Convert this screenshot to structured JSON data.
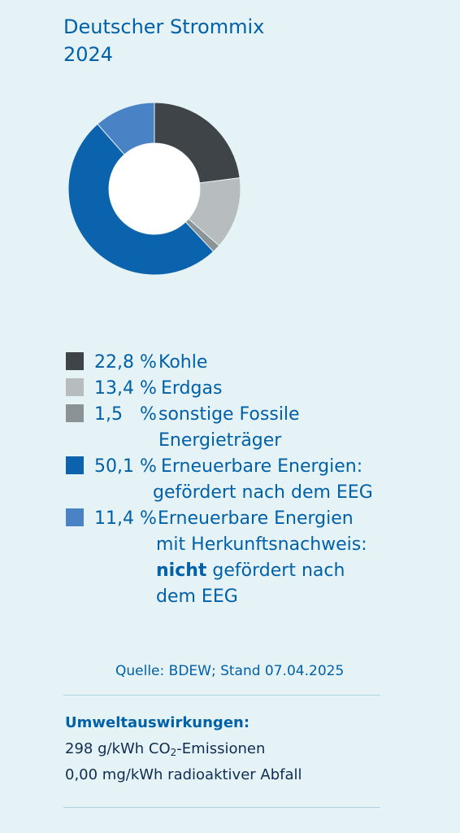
{
  "header": {
    "title_line1": "Deutscher Strommix",
    "title_line2": "2024"
  },
  "chart_data": {
    "type": "pie",
    "donut": true,
    "categories": [
      "Kohle",
      "Erdgas",
      "sonstige Fossile Energieträger",
      "Erneuerbare Energien: gefördert nach dem EEG",
      "Erneuerbare Energien mit Herkunftsnachweis: nicht gefördert nach dem EEG"
    ],
    "values": [
      22.8,
      13.4,
      1.5,
      50.1,
      11.4
    ],
    "unit": "%",
    "colors": [
      "#3f4448",
      "#b7bcbf",
      "#8c9396",
      "#0a63ac",
      "#4a82c6"
    ],
    "start_angle_deg": 0,
    "direction": "clockwise"
  },
  "legend": {
    "items": [
      {
        "pct": "22,8 %",
        "lines": [
          "Kohle"
        ],
        "color": "#3f4448"
      },
      {
        "pct": "13,4 %",
        "lines": [
          "Erdgas"
        ],
        "color": "#b7bcbf"
      },
      {
        "pct": "1,5   %",
        "lines": [
          "sonstige Fossile",
          "Energieträger"
        ],
        "color": "#8c9396"
      },
      {
        "pct": "50,1 %",
        "lines": [
          "Erneuerbare Energien:",
          "gefördert nach dem EEG"
        ],
        "color": "#0a63ac"
      },
      {
        "pct": "11,4 %",
        "lines": [
          "Erneuerbare Energien",
          "mit Herkunftsnachweis:"
        ],
        "emph": "nicht",
        "rest": " gefördert nach",
        "last": "dem EEG",
        "color": "#4a82c6"
      }
    ]
  },
  "source": "Quelle: BDEW; Stand 07.04.2025",
  "environment": {
    "heading": "Umweltauswirkungen:",
    "co2_prefix": "298 g/kWh CO",
    "co2_sub": "2",
    "co2_suffix": "-Emissionen",
    "waste": "0,00 mg/kWh radioaktiver Abfall"
  }
}
